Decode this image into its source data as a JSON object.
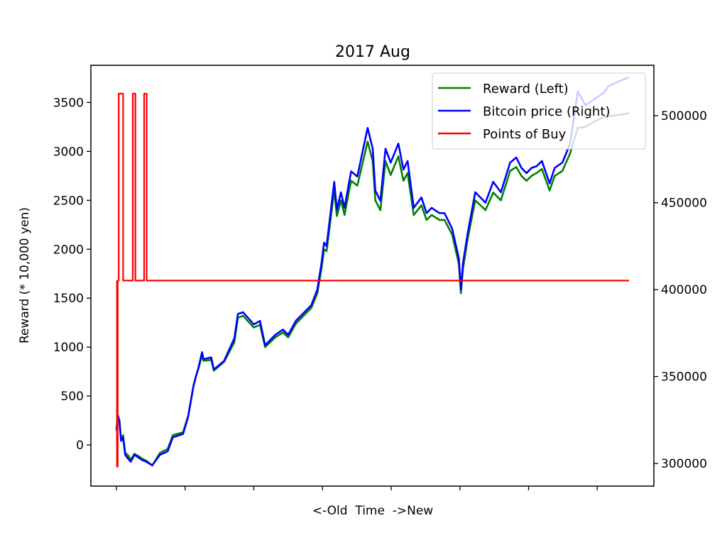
{
  "chart_data": {
    "type": "line",
    "title": "2017 Aug",
    "xlabel": "<-Old  Time  ->New",
    "ylabel_left": "Reward (* 10,000 yen)",
    "ylabel_right": "",
    "x_range": [
      0,
      1000
    ],
    "ylim_left": [
      -420,
      3880
    ],
    "ylim_right": [
      287000,
      529000
    ],
    "yticks_left": [
      "0",
      "500",
      "1000",
      "1500",
      "2000",
      "2500",
      "3000",
      "3500"
    ],
    "yticks_left_values": [
      0,
      500,
      1000,
      1500,
      2000,
      2500,
      3000,
      3500
    ],
    "yticks_right": [
      "300000",
      "350000",
      "400000",
      "450000",
      "500000"
    ],
    "yticks_right_values": [
      300000,
      350000,
      400000,
      450000,
      500000
    ],
    "x_ticks_unlabeled": [
      0,
      134,
      268,
      402,
      536,
      670,
      804,
      938
    ],
    "grid": false,
    "legend_position": "top-right",
    "series": [
      {
        "name": "Reward (Left)",
        "color": "#008000",
        "axis": "left",
        "x": [
          0,
          3,
          6,
          9,
          13,
          17,
          22,
          28,
          35,
          45,
          50,
          58,
          70,
          85,
          100,
          110,
          130,
          140,
          150,
          155,
          160,
          167,
          170,
          185,
          190,
          210,
          230,
          237,
          247,
          268,
          280,
          290,
          310,
          325,
          335,
          350,
          380,
          392,
          395,
          400,
          405,
          410,
          425,
          430,
          438,
          445,
          454,
          458,
          470,
          490,
          500,
          505,
          515,
          525,
          535,
          550,
          560,
          568,
          580,
          595,
          605,
          615,
          630,
          640,
          655,
          668,
          672,
          676,
          685,
          700,
          720,
          735,
          750,
          768,
          780,
          790,
          800,
          810,
          820,
          830,
          845,
          855,
          870,
          885,
          900,
          915,
          930,
          950,
          960,
          975,
          990,
          1000
        ],
        "y": [
          170,
          300,
          250,
          50,
          100,
          -80,
          -100,
          -150,
          -90,
          -120,
          -140,
          -160,
          -210,
          -80,
          -40,
          100,
          130,
          300,
          600,
          700,
          780,
          920,
          860,
          870,
          760,
          850,
          1050,
          1300,
          1320,
          1200,
          1230,
          1000,
          1100,
          1150,
          1100,
          1240,
          1400,
          1550,
          1650,
          1800,
          2000,
          1980,
          2600,
          2340,
          2500,
          2350,
          2600,
          2700,
          2650,
          3100,
          2900,
          2500,
          2400,
          2900,
          2760,
          2950,
          2700,
          2780,
          2350,
          2450,
          2300,
          2350,
          2300,
          2300,
          2150,
          1850,
          1550,
          1800,
          2100,
          2500,
          2400,
          2580,
          2500,
          2800,
          2840,
          2750,
          2700,
          2750,
          2780,
          2820,
          2600,
          2750,
          2800,
          2980,
          3240,
          3250,
          3300,
          3350,
          3360,
          3370,
          3380,
          3390
        ]
      },
      {
        "name": "Bitcoin price (Right)",
        "color": "#0000ff",
        "axis": "right",
        "x": [
          0,
          3,
          6,
          9,
          13,
          17,
          22,
          28,
          35,
          45,
          50,
          58,
          70,
          85,
          100,
          110,
          130,
          140,
          150,
          155,
          160,
          167,
          170,
          185,
          190,
          210,
          230,
          237,
          247,
          268,
          280,
          290,
          310,
          325,
          335,
          350,
          380,
          392,
          395,
          400,
          405,
          410,
          425,
          430,
          438,
          445,
          454,
          458,
          470,
          490,
          500,
          505,
          515,
          525,
          535,
          550,
          560,
          568,
          580,
          595,
          605,
          615,
          630,
          640,
          655,
          668,
          672,
          676,
          685,
          700,
          720,
          735,
          750,
          768,
          780,
          790,
          800,
          810,
          820,
          830,
          845,
          855,
          870,
          885,
          900,
          915,
          930,
          950,
          960,
          975,
          990,
          1000
        ],
        "y": [
          319000,
          327500,
          324000,
          313000,
          315000,
          305000,
          303000,
          301000,
          305000,
          303000,
          302000,
          301000,
          299000,
          305000,
          307000,
          315000,
          317000,
          327000,
          344000,
          350000,
          355000,
          364000,
          360000,
          361000,
          354000,
          359000,
          372000,
          386000,
          387000,
          380000,
          382000,
          368000,
          374000,
          377000,
          374000,
          382000,
          391000,
          400000,
          406000,
          415000,
          427000,
          425000,
          462000,
          446000,
          456000,
          447000,
          462000,
          468000,
          465000,
          493000,
          481000,
          457000,
          451000,
          481000,
          473000,
          484000,
          469000,
          474000,
          447000,
          453000,
          444000,
          447000,
          444000,
          444000,
          435000,
          418000,
          400000,
          415000,
          432000,
          456000,
          450000,
          462000,
          456000,
          473000,
          476000,
          470000,
          467000,
          470000,
          471000,
          474000,
          461000,
          470000,
          473000,
          484000,
          514000,
          506000,
          509000,
          513000,
          517000,
          519000,
          521000,
          522000
        ]
      },
      {
        "name": "Points of Buy",
        "color": "#ff0000",
        "axis": "left",
        "x": [
          1,
          1,
          2.5,
          2.5,
          4.5,
          4.5,
          13,
          13,
          32,
          32,
          37,
          37,
          54,
          54,
          59,
          59,
          62,
          62,
          1000
        ],
        "y": [
          1680,
          -220,
          -220,
          1680,
          1680,
          3590,
          3590,
          1680,
          1680,
          3590,
          3590,
          1680,
          1680,
          3590,
          3590,
          1680,
          1680,
          1680,
          1680
        ]
      }
    ]
  }
}
